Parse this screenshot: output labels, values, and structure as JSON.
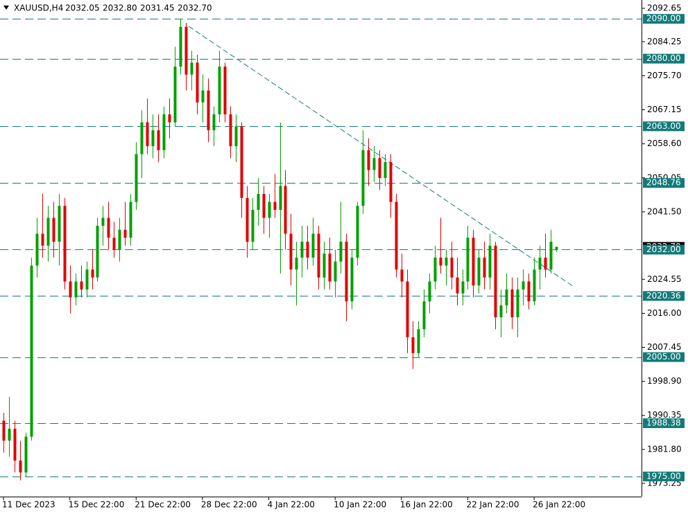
{
  "chart_data": {
    "type": "candlestick",
    "symbol": "XAUUSD,H4",
    "last_ohlc_labels": [
      "2032.05",
      "2032.80",
      "2031.45",
      "2032.70"
    ],
    "up_color": "#00a000",
    "down_color": "#e00000",
    "level_color": "#137a7a",
    "ylim": [
      1969.94,
      2094.74
    ],
    "yticks": [
      2092.65,
      2084.25,
      {
        "value": 2075.7,
        "label": "2075.70"
      },
      2067.15,
      {
        "value": 2058.6,
        "label": "2058.60"
      },
      2050.05,
      {
        "value": 2041.5,
        "label": "2041.50"
      },
      2024.55,
      {
        "value": 2016,
        "label": "2016.00"
      },
      2007.45,
      {
        "value": 1998.9,
        "label": "1998.90"
      },
      1990.35,
      {
        "value": 1981.8,
        "label": "1981.80"
      },
      1973.25
    ],
    "levels": [
      {
        "value": 2090,
        "label": "2090.00"
      },
      {
        "value": 2080,
        "label": "2080.00"
      },
      {
        "value": 2063,
        "label": "2063.00"
      },
      {
        "value": 2048.76,
        "label": "2048.76"
      },
      {
        "value": 2032,
        "label": "2032.00"
      },
      {
        "value": 2020.36,
        "label": "2020.36"
      },
      {
        "value": 2005,
        "label": "2005.00"
      },
      {
        "value": 1988.38,
        "label": "1988.38"
      },
      {
        "value": 1975,
        "label": "1975.00"
      }
    ],
    "current_price": {
      "value": 2032.7,
      "label": "2032.70"
    },
    "trendline": {
      "from": [
        33.5,
        2088.13
      ],
      "to": [
        103,
        2022.85
      ]
    },
    "categories": [
      "11 Dec 2023",
      null,
      null,
      null,
      null,
      null,
      null,
      null,
      null,
      null,
      null,
      null,
      "15 Dec 22:00",
      null,
      null,
      null,
      null,
      null,
      null,
      null,
      null,
      null,
      null,
      null,
      "21 Dec 22:00",
      null,
      null,
      null,
      null,
      null,
      null,
      null,
      null,
      null,
      null,
      null,
      "28 Dec 22:00",
      null,
      null,
      null,
      null,
      null,
      null,
      null,
      null,
      null,
      null,
      null,
      "4 Jan 22:00",
      null,
      null,
      null,
      null,
      null,
      null,
      null,
      null,
      null,
      null,
      null,
      "10 Jan 22:00",
      null,
      null,
      null,
      null,
      null,
      null,
      null,
      null,
      null,
      null,
      null,
      "16 Jan 22:00",
      null,
      null,
      null,
      null,
      null,
      null,
      null,
      null,
      null,
      null,
      null,
      "22 Jan 22:00",
      null,
      null,
      null,
      null,
      null,
      null,
      null,
      null,
      null,
      null,
      null,
      "26 Jan 22:00",
      null,
      null,
      null,
      null
    ],
    "ohlc": [
      [
        1989,
        1991,
        1981,
        1984
      ],
      [
        1984,
        1995,
        1980,
        1987
      ],
      [
        1987,
        1989,
        1976,
        1979
      ],
      [
        1979,
        1984,
        1974,
        1976
      ],
      [
        1976,
        1986,
        1975,
        1985
      ],
      [
        1985,
        2030,
        1984,
        2028
      ],
      [
        2028,
        2040,
        2025,
        2036
      ],
      [
        2036,
        2046,
        2030,
        2033
      ],
      [
        2033,
        2043,
        2029,
        2040
      ],
      [
        2040,
        2044,
        2030,
        2034
      ],
      [
        2034,
        2046,
        2028,
        2043
      ],
      [
        2043,
        2045,
        2022,
        2024
      ],
      [
        2024,
        2028,
        2016,
        2020
      ],
      [
        2020,
        2026,
        2018,
        2024
      ],
      [
        2024,
        2028,
        2020,
        2022
      ],
      [
        2022,
        2029,
        2020,
        2027
      ],
      [
        2027,
        2032,
        2022,
        2025
      ],
      [
        2025,
        2040,
        2024,
        2038
      ],
      [
        2038,
        2043,
        2033,
        2040
      ],
      [
        2040,
        2044,
        2032,
        2035
      ],
      [
        2035,
        2039,
        2030,
        2032
      ],
      [
        2032,
        2040,
        2029,
        2037
      ],
      [
        2037,
        2044,
        2033,
        2035
      ],
      [
        2035,
        2046,
        2033,
        2044
      ],
      [
        2044,
        2059,
        2042,
        2056
      ],
      [
        2056,
        2067,
        2050,
        2064
      ],
      [
        2064,
        2070,
        2056,
        2058
      ],
      [
        2058,
        2066,
        2055,
        2062
      ],
      [
        2062,
        2066,
        2054,
        2057
      ],
      [
        2057,
        2068,
        2055,
        2066
      ],
      [
        2066,
        2070,
        2060,
        2064
      ],
      [
        2064,
        2083,
        2063,
        2078
      ],
      [
        2078,
        2090,
        2076,
        2088
      ],
      [
        2088,
        2089,
        2072,
        2076
      ],
      [
        2076,
        2082,
        2072,
        2079
      ],
      [
        2079,
        2081,
        2066,
        2069
      ],
      [
        2069,
        2076,
        2064,
        2072
      ],
      [
        2072,
        2075,
        2059,
        2062
      ],
      [
        2062,
        2068,
        2058,
        2066
      ],
      [
        2066,
        2082,
        2064,
        2078
      ],
      [
        2078,
        2079,
        2064,
        2066
      ],
      [
        2066,
        2068,
        2055,
        2058
      ],
      [
        2058,
        2066,
        2054,
        2063
      ],
      [
        2063,
        2064,
        2040,
        2045
      ],
      [
        2045,
        2048,
        2030,
        2034
      ],
      [
        2034,
        2045,
        2032,
        2042
      ],
      [
        2042,
        2050,
        2038,
        2046
      ],
      [
        2046,
        2048,
        2036,
        2040
      ],
      [
        2040,
        2046,
        2035,
        2044
      ],
      [
        2044,
        2051,
        2040,
        2042
      ],
      [
        2042,
        2064,
        2026,
        2048
      ],
      [
        2048,
        2052,
        2032,
        2036
      ],
      [
        2036,
        2041,
        2023,
        2027
      ],
      [
        2027,
        2034,
        2018,
        2030
      ],
      [
        2030,
        2038,
        2025,
        2034
      ],
      [
        2034,
        2038,
        2027,
        2030
      ],
      [
        2030,
        2040,
        2028,
        2036
      ],
      [
        2036,
        2038,
        2022,
        2025
      ],
      [
        2025,
        2034,
        2022,
        2031
      ],
      [
        2031,
        2035,
        2022,
        2024
      ],
      [
        2024,
        2032,
        2020,
        2029
      ],
      [
        2029,
        2044,
        2026,
        2034
      ],
      [
        2034,
        2036,
        2014,
        2019
      ],
      [
        2019,
        2032,
        2017,
        2030
      ],
      [
        2030,
        2044,
        2028,
        2043
      ],
      [
        2043,
        2062,
        2041,
        2057
      ],
      [
        2057,
        2060,
        2048,
        2052
      ],
      [
        2052,
        2058,
        2049,
        2055
      ],
      [
        2055,
        2057,
        2047,
        2050
      ],
      [
        2050,
        2056,
        2048,
        2054
      ],
      [
        2054,
        2056,
        2040,
        2044
      ],
      [
        2044,
        2046,
        2025,
        2027
      ],
      [
        2027,
        2031,
        2020,
        2024
      ],
      [
        2024,
        2027,
        2006,
        2010
      ],
      [
        2010,
        2014,
        2002,
        2006
      ],
      [
        2006,
        2014,
        2005,
        2012
      ],
      [
        2012,
        2022,
        2010,
        2019
      ],
      [
        2019,
        2026,
        2016,
        2024
      ],
      [
        2024,
        2033,
        2022,
        2030
      ],
      [
        2030,
        2040,
        2026,
        2028
      ],
      [
        2028,
        2032,
        2023,
        2030
      ],
      [
        2030,
        2034,
        2022,
        2025
      ],
      [
        2025,
        2030,
        2018,
        2021
      ],
      [
        2021,
        2027,
        2018,
        2024
      ],
      [
        2024,
        2038,
        2022,
        2035
      ],
      [
        2035,
        2037,
        2020,
        2023
      ],
      [
        2023,
        2032,
        2021,
        2030
      ],
      [
        2030,
        2034,
        2022,
        2025
      ],
      [
        2025,
        2036,
        2022,
        2033
      ],
      [
        2033,
        2034,
        2012,
        2015
      ],
      [
        2015,
        2022,
        2010,
        2018
      ],
      [
        2018,
        2026,
        2016,
        2022
      ],
      [
        2022,
        2025,
        2012,
        2015
      ],
      [
        2015,
        2025,
        2010,
        2022
      ],
      [
        2022,
        2027,
        2018,
        2024
      ],
      [
        2024,
        2026,
        2017,
        2019
      ],
      [
        2019,
        2030,
        2018,
        2027
      ],
      [
        2027,
        2033,
        2022,
        2030
      ],
      [
        2030,
        2036,
        2025,
        2027
      ],
      [
        2027,
        2037,
        2026,
        2034
      ],
      [
        2032.05,
        2032.8,
        2031.45,
        2032.7
      ]
    ]
  }
}
